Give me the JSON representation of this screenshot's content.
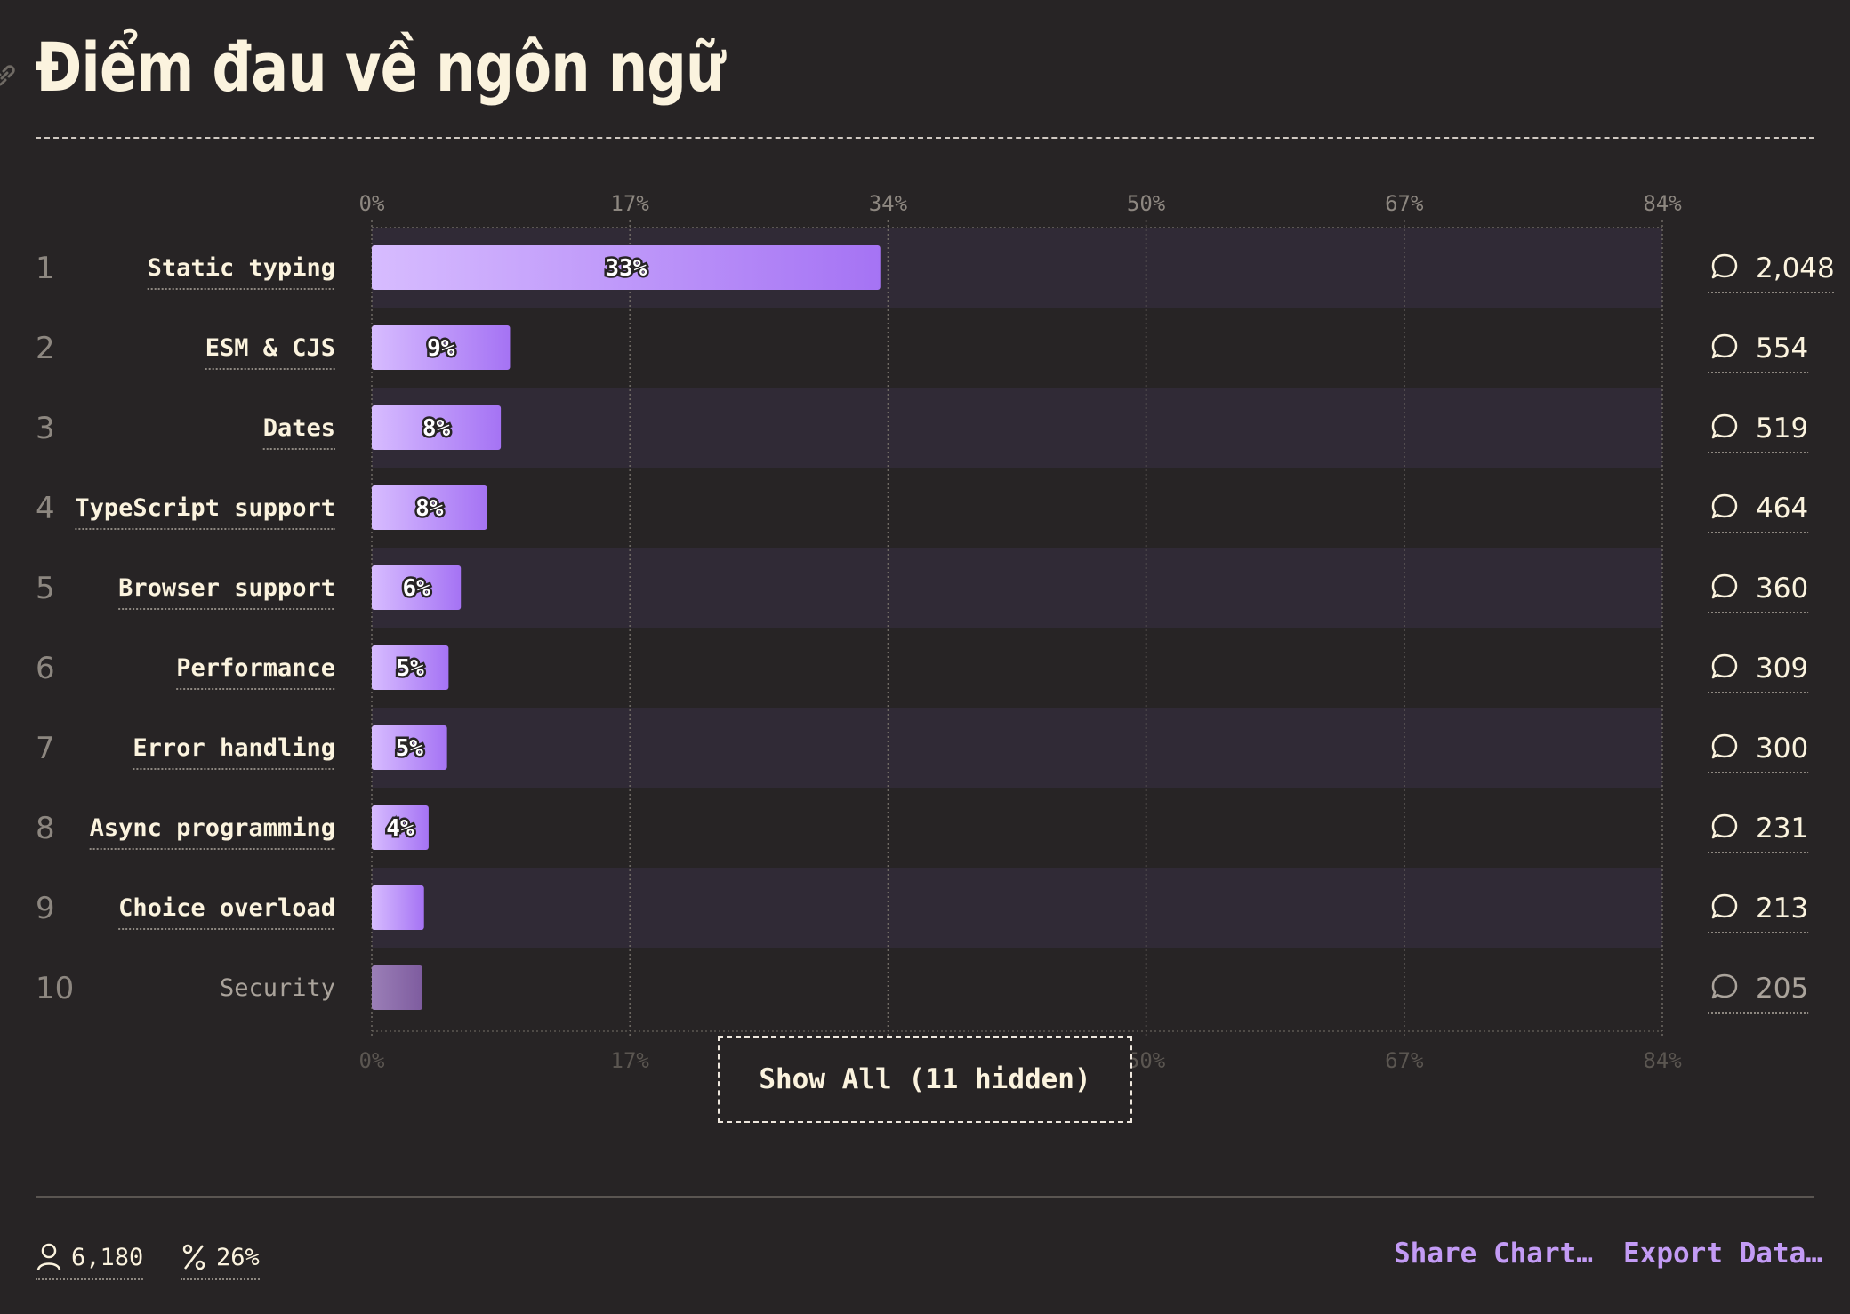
{
  "title": "Điểm đau về ngôn ngữ",
  "chart_data": {
    "type": "bar",
    "orientation": "horizontal",
    "x_ticks": [
      "0%",
      "17%",
      "34%",
      "50%",
      "67%",
      "84%"
    ],
    "xlim": [
      0,
      84
    ],
    "categories": [
      "Static typing",
      "ESM & CJS",
      "Dates",
      "TypeScript support",
      "Browser support",
      "Performance",
      "Error handling",
      "Async programming",
      "Choice overload",
      "Security"
    ],
    "ranks": [
      "1",
      "2",
      "3",
      "4",
      "5",
      "6",
      "7",
      "8",
      "9",
      "10"
    ],
    "values": [
      33.1,
      9.0,
      8.4,
      7.5,
      5.8,
      5.0,
      4.9,
      3.7,
      3.4,
      3.3
    ],
    "value_labels": [
      "33%",
      "9%",
      "8%",
      "8%",
      "6%",
      "5%",
      "5%",
      "4%",
      "",
      ""
    ],
    "counts": [
      "2,048",
      "554",
      "519",
      "464",
      "360",
      "309",
      "300",
      "231",
      "213",
      "205"
    ],
    "grid": true,
    "colors": {
      "bar_start": "#d7bcff",
      "bar_end": "#a573f4",
      "bar_muted": "#8b6aa6",
      "row_band": "#302a36",
      "background": "#272425"
    }
  },
  "show_all_label": "Show All (11 hidden)",
  "footer": {
    "respondents": "6,180",
    "percent": "26%",
    "share_label": "Share Chart…",
    "export_label": "Export Data…"
  },
  "icons": {
    "title": "link-icon",
    "count": "comment-icon",
    "respondents": "user-icon",
    "percent": "percent-icon"
  }
}
